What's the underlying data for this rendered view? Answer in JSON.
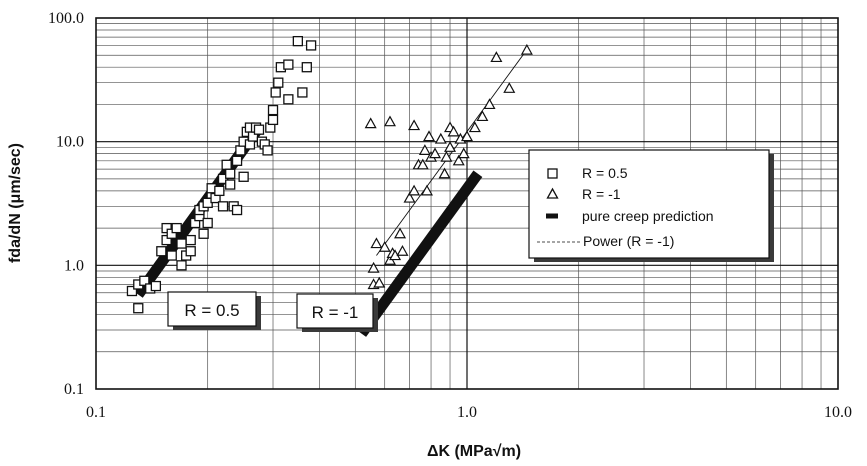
{
  "chart_data": {
    "type": "scatter",
    "title": "",
    "xlabel": "ΔK (MPa√m)",
    "ylabel": "fda/dN (μm/sec)",
    "xscale": "log",
    "yscale": "log",
    "xlim": [
      0.1,
      10.0
    ],
    "ylim": [
      0.1,
      100.0
    ],
    "x_ticks": [
      "0.1",
      "1.0",
      "10.0"
    ],
    "y_ticks": [
      "0.1",
      "1.0",
      "10.0",
      "100.0"
    ],
    "grid": "major and minor",
    "legend_position": "right",
    "series": [
      {
        "name": "R = 0.5",
        "marker": "square",
        "points": [
          [
            0.125,
            0.62
          ],
          [
            0.13,
            0.45
          ],
          [
            0.13,
            0.7
          ],
          [
            0.135,
            0.75
          ],
          [
            0.14,
            0.65
          ],
          [
            0.145,
            0.68
          ],
          [
            0.15,
            1.3
          ],
          [
            0.155,
            1.6
          ],
          [
            0.155,
            2.0
          ],
          [
            0.16,
            1.2
          ],
          [
            0.16,
            1.8
          ],
          [
            0.165,
            2.0
          ],
          [
            0.17,
            1.5
          ],
          [
            0.17,
            1.0
          ],
          [
            0.175,
            1.2
          ],
          [
            0.18,
            1.3
          ],
          [
            0.18,
            1.6
          ],
          [
            0.185,
            2.2
          ],
          [
            0.19,
            2.5
          ],
          [
            0.19,
            2.8
          ],
          [
            0.195,
            1.8
          ],
          [
            0.195,
            3.0
          ],
          [
            0.2,
            3.2
          ],
          [
            0.2,
            2.2
          ],
          [
            0.205,
            3.8
          ],
          [
            0.205,
            4.2
          ],
          [
            0.21,
            3.5
          ],
          [
            0.215,
            4.0
          ],
          [
            0.22,
            3.0
          ],
          [
            0.22,
            5.0
          ],
          [
            0.225,
            6.5
          ],
          [
            0.23,
            5.5
          ],
          [
            0.23,
            4.5
          ],
          [
            0.235,
            3.0
          ],
          [
            0.24,
            2.8
          ],
          [
            0.24,
            7.0
          ],
          [
            0.245,
            8.5
          ],
          [
            0.25,
            5.2
          ],
          [
            0.25,
            10.0
          ],
          [
            0.255,
            12.0
          ],
          [
            0.26,
            13.0
          ],
          [
            0.26,
            9.5
          ],
          [
            0.265,
            11.0
          ],
          [
            0.27,
            13.0
          ],
          [
            0.275,
            12.5
          ],
          [
            0.28,
            10.0
          ],
          [
            0.285,
            9.5
          ],
          [
            0.29,
            8.5
          ],
          [
            0.295,
            13.0
          ],
          [
            0.3,
            15.0
          ],
          [
            0.3,
            18.0
          ],
          [
            0.305,
            25.0
          ],
          [
            0.31,
            30.0
          ],
          [
            0.315,
            40.0
          ],
          [
            0.33,
            22.0
          ],
          [
            0.33,
            42.0
          ],
          [
            0.35,
            65.0
          ],
          [
            0.36,
            25.0
          ],
          [
            0.37,
            40.0
          ],
          [
            0.38,
            60.0
          ]
        ]
      },
      {
        "name": "R = -1",
        "marker": "triangle",
        "points": [
          [
            0.56,
            0.7
          ],
          [
            0.56,
            0.95
          ],
          [
            0.57,
            1.5
          ],
          [
            0.58,
            0.72
          ],
          [
            0.6,
            1.4
          ],
          [
            0.62,
            1.1
          ],
          [
            0.63,
            1.25
          ],
          [
            0.64,
            1.2
          ],
          [
            0.66,
            1.8
          ],
          [
            0.55,
            14.0
          ],
          [
            0.62,
            14.5
          ],
          [
            0.67,
            1.3
          ],
          [
            0.7,
            3.5
          ],
          [
            0.72,
            4.0
          ],
          [
            0.72,
            13.5
          ],
          [
            0.74,
            6.5
          ],
          [
            0.76,
            6.5
          ],
          [
            0.77,
            8.5
          ],
          [
            0.78,
            4.0
          ],
          [
            0.79,
            11.0
          ],
          [
            0.8,
            7.5
          ],
          [
            0.82,
            8.0
          ],
          [
            0.85,
            10.5
          ],
          [
            0.87,
            5.5
          ],
          [
            0.88,
            7.5
          ],
          [
            0.9,
            9.0
          ],
          [
            0.9,
            13.0
          ],
          [
            0.92,
            12.0
          ],
          [
            0.95,
            7.0
          ],
          [
            0.96,
            10.5
          ],
          [
            0.98,
            8.0
          ],
          [
            1.0,
            11.0
          ],
          [
            1.05,
            13.0
          ],
          [
            1.1,
            16.0
          ],
          [
            1.15,
            20.0
          ],
          [
            1.2,
            48.0
          ],
          [
            1.3,
            27.0
          ],
          [
            1.45,
            55.0
          ]
        ]
      },
      {
        "name": "pure creep prediction",
        "marker": "thick-line",
        "lines": [
          [
            [
              0.13,
              0.58
            ],
            [
              0.275,
              13.0
            ]
          ],
          [
            [
              0.52,
              0.28
            ],
            [
              1.07,
              5.5
            ]
          ]
        ]
      },
      {
        "name": "Power (R = -1)",
        "marker": "thin-line",
        "lines": [
          [
            [
              0.57,
              1.2
            ],
            [
              1.46,
              57.0
            ]
          ]
        ]
      }
    ],
    "annotations": [
      "R = 0.5",
      "R = -1"
    ]
  }
}
